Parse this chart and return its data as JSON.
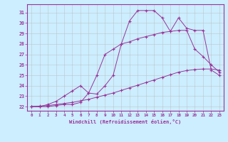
{
  "xlabel": "Windchill (Refroidissement éolien,°C)",
  "bg_color": "#cceeff",
  "grid_color": "#bbbbbb",
  "line_color": "#993399",
  "xlim": [
    -0.5,
    23.5
  ],
  "ylim": [
    21.6,
    31.8
  ],
  "yticks": [
    22,
    23,
    24,
    25,
    26,
    27,
    28,
    29,
    30,
    31
  ],
  "xticks": [
    0,
    1,
    2,
    3,
    4,
    5,
    6,
    7,
    8,
    9,
    10,
    11,
    12,
    13,
    14,
    15,
    16,
    17,
    18,
    19,
    20,
    21,
    22,
    23
  ],
  "line1_x": [
    0,
    1,
    2,
    3,
    4,
    5,
    6,
    7,
    8,
    9,
    10,
    11,
    12,
    13,
    14,
    15,
    16,
    17,
    18,
    19,
    20,
    21,
    22,
    23
  ],
  "line1_y": [
    22.0,
    22.05,
    22.1,
    22.2,
    22.3,
    22.4,
    22.55,
    22.7,
    22.9,
    23.1,
    23.3,
    23.55,
    23.8,
    24.05,
    24.3,
    24.55,
    24.8,
    25.05,
    25.3,
    25.45,
    25.55,
    25.6,
    25.6,
    25.5
  ],
  "line2_x": [
    0,
    1,
    2,
    3,
    4,
    5,
    6,
    7,
    8,
    9,
    10,
    11,
    12,
    13,
    14,
    15,
    16,
    17,
    18,
    19,
    20,
    21,
    22,
    23
  ],
  "line2_y": [
    22.0,
    22.0,
    22.2,
    22.5,
    23.0,
    23.5,
    24.0,
    23.3,
    25.0,
    27.0,
    27.5,
    28.0,
    28.2,
    28.5,
    28.7,
    28.9,
    29.1,
    29.2,
    29.3,
    29.3,
    27.5,
    26.8,
    26.0,
    25.3
  ],
  "line3_x": [
    0,
    1,
    2,
    3,
    4,
    5,
    6,
    7,
    8,
    9,
    10,
    11,
    12,
    13,
    14,
    15,
    16,
    17,
    18,
    19,
    20,
    21,
    22,
    23
  ],
  "line3_y": [
    22.0,
    22.0,
    22.0,
    22.1,
    22.2,
    22.2,
    22.4,
    23.3,
    23.2,
    24.0,
    25.0,
    28.0,
    30.2,
    31.2,
    31.2,
    31.2,
    30.5,
    29.2,
    30.5,
    29.5,
    29.3,
    29.3,
    25.5,
    25.0
  ]
}
